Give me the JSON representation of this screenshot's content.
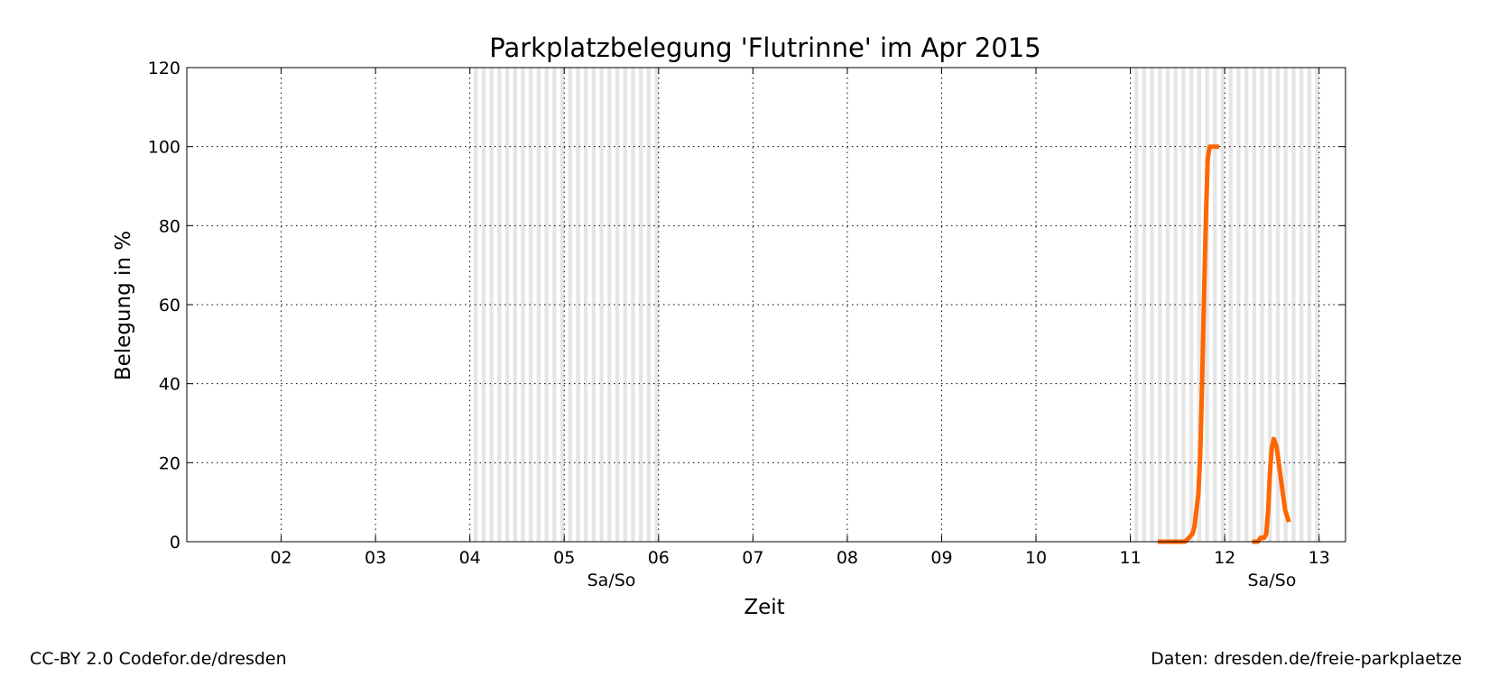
{
  "chart_data": {
    "type": "line",
    "title": "Parkplatzbelegung 'Flutrinne' im Apr 2015",
    "xlabel": "Zeit",
    "ylabel": "Belegung in %",
    "xlim": [
      1,
      13.28
    ],
    "ylim": [
      0,
      120
    ],
    "xticks": [
      {
        "value": 2,
        "label": "02"
      },
      {
        "value": 3,
        "label": "03"
      },
      {
        "value": 4,
        "label": "04"
      },
      {
        "value": 5,
        "label": "05"
      },
      {
        "value": 6,
        "label": "06"
      },
      {
        "value": 7,
        "label": "07"
      },
      {
        "value": 8,
        "label": "08"
      },
      {
        "value": 9,
        "label": "09"
      },
      {
        "value": 10,
        "label": "10"
      },
      {
        "value": 11,
        "label": "11"
      },
      {
        "value": 12,
        "label": "12"
      },
      {
        "value": 13,
        "label": "13"
      }
    ],
    "yticks": [
      0,
      20,
      40,
      60,
      80,
      100,
      120
    ],
    "grid": true,
    "weekend_label": "Sa/So",
    "weekends": [
      {
        "start": 4,
        "end": 6,
        "label_at": 5.5
      },
      {
        "start": 11,
        "end": 13,
        "label_at": 12.5
      }
    ],
    "series": [
      {
        "color": "#ff6600",
        "segments": [
          [
            [
              11.29,
              0
            ],
            [
              11.4,
              0
            ],
            [
              11.5,
              0
            ],
            [
              11.58,
              0
            ],
            [
              11.62,
              1
            ],
            [
              11.66,
              2
            ],
            [
              11.68,
              4
            ],
            [
              11.7,
              8
            ],
            [
              11.72,
              12
            ],
            [
              11.74,
              22
            ],
            [
              11.76,
              40
            ],
            [
              11.78,
              62
            ],
            [
              11.8,
              82
            ],
            [
              11.82,
              97
            ],
            [
              11.84,
              100
            ],
            [
              11.88,
              100
            ],
            [
              11.94,
              100
            ]
          ],
          [
            [
              12.29,
              0
            ],
            [
              12.35,
              0
            ],
            [
              12.38,
              1
            ],
            [
              12.42,
              1
            ],
            [
              12.44,
              2
            ],
            [
              12.46,
              8
            ],
            [
              12.48,
              18
            ],
            [
              12.5,
              24
            ],
            [
              12.52,
              26
            ],
            [
              12.55,
              24
            ],
            [
              12.6,
              15
            ],
            [
              12.64,
              8
            ],
            [
              12.68,
              5
            ]
          ]
        ]
      }
    ]
  },
  "footer": {
    "left": "CC-BY 2.0 Codefor.de/dresden",
    "right": "Daten: dresden.de/freie-parkplaetze"
  }
}
